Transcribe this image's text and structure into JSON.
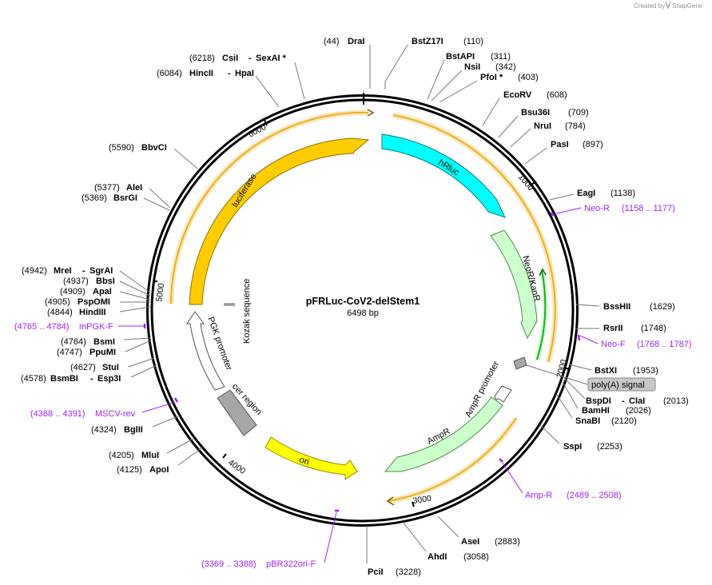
{
  "header": {
    "created_by": "Created by",
    "brand": "SnapGene"
  },
  "plasmid": {
    "name": "pFRLuc-CoV2-delStem1",
    "length_label": "6498 bp",
    "length": 6498
  },
  "ticks": [
    {
      "bp": 1000,
      "label": "1000"
    },
    {
      "bp": 2000,
      "label": "2000"
    },
    {
      "bp": 3000,
      "label": "3000"
    },
    {
      "bp": 4000,
      "label": "4000"
    },
    {
      "bp": 5000,
      "label": "5000"
    },
    {
      "bp": 6000,
      "label": "6000"
    }
  ],
  "sites": [
    {
      "bp": 44,
      "pos": "(44)",
      "names": [
        "DraI"
      ],
      "side": "L"
    },
    {
      "bp": 110,
      "pos": "(110)",
      "names": [
        "BstZ17I"
      ],
      "side": "R"
    },
    {
      "bp": 311,
      "pos": "(311)",
      "names": [
        "BstAPI"
      ],
      "side": "R"
    },
    {
      "bp": 342,
      "pos": "(342)",
      "names": [
        "NsiI"
      ],
      "side": "R"
    },
    {
      "bp": 403,
      "pos": "(403)",
      "names": [
        "PfoI *"
      ],
      "side": "R"
    },
    {
      "bp": 608,
      "pos": "(608)",
      "names": [
        "EcoRV"
      ],
      "side": "R"
    },
    {
      "bp": 709,
      "pos": "(709)",
      "names": [
        "Bsu36I"
      ],
      "side": "R"
    },
    {
      "bp": 784,
      "pos": "(784)",
      "names": [
        "NruI"
      ],
      "side": "R"
    },
    {
      "bp": 897,
      "pos": "(897)",
      "names": [
        "PasI"
      ],
      "side": "R"
    },
    {
      "bp": 1138,
      "pos": "(1138)",
      "names": [
        "EagI"
      ],
      "side": "R"
    },
    {
      "bp": 1629,
      "pos": "(1629)",
      "names": [
        "BssHII"
      ],
      "side": "R"
    },
    {
      "bp": 1748,
      "pos": "(1748)",
      "names": [
        "RsrII"
      ],
      "side": "R"
    },
    {
      "bp": 1953,
      "pos": "(1953)",
      "names": [
        "BstXI"
      ],
      "side": "R"
    },
    {
      "bp": 2013,
      "pos": "(2013)",
      "names": [
        "BspDI",
        "ClaI"
      ],
      "side": "R"
    },
    {
      "bp": 2026,
      "pos": "(2026)",
      "names": [
        "BamHI"
      ],
      "side": "R"
    },
    {
      "bp": 2120,
      "pos": "(2120)",
      "names": [
        "SnaBI"
      ],
      "side": "R"
    },
    {
      "bp": 2253,
      "pos": "(2253)",
      "names": [
        "SspI"
      ],
      "side": "R"
    },
    {
      "bp": 2883,
      "pos": "(2883)",
      "names": [
        "AseI"
      ],
      "side": "R"
    },
    {
      "bp": 3058,
      "pos": "(3058)",
      "names": [
        "AhdI"
      ],
      "side": "R"
    },
    {
      "bp": 3228,
      "pos": "(3228)",
      "names": [
        "PciI"
      ],
      "side": "R"
    },
    {
      "bp": 4125,
      "pos": "(4125)",
      "names": [
        "ApoI"
      ],
      "side": "L"
    },
    {
      "bp": 4205,
      "pos": "(4205)",
      "names": [
        "MluI"
      ],
      "side": "L"
    },
    {
      "bp": 4324,
      "pos": "(4324)",
      "names": [
        "BglII"
      ],
      "side": "L"
    },
    {
      "bp": 4578,
      "pos": "(4578)",
      "names": [
        "BsmBI",
        "Esp3I"
      ],
      "side": "L"
    },
    {
      "bp": 4627,
      "pos": "(4627)",
      "names": [
        "StuI"
      ],
      "side": "L"
    },
    {
      "bp": 4747,
      "pos": "(4747)",
      "names": [
        "PpuMI"
      ],
      "side": "L"
    },
    {
      "bp": 4764,
      "pos": "(4764)",
      "names": [
        "BsmI"
      ],
      "side": "L"
    },
    {
      "bp": 4844,
      "pos": "(4844)",
      "names": [
        "HindIII"
      ],
      "side": "L"
    },
    {
      "bp": 4905,
      "pos": "(4905)",
      "names": [
        "PspOMI"
      ],
      "side": "L"
    },
    {
      "bp": 4909,
      "pos": "(4909)",
      "names": [
        "ApaI"
      ],
      "side": "L"
    },
    {
      "bp": 4937,
      "pos": "(4937)",
      "names": [
        "BbsI"
      ],
      "side": "L"
    },
    {
      "bp": 4942,
      "pos": "(4942)",
      "names": [
        "MreI",
        "SgrAI"
      ],
      "side": "L"
    },
    {
      "bp": 5369,
      "pos": "(5369)",
      "names": [
        "BsrGI"
      ],
      "side": "L"
    },
    {
      "bp": 5377,
      "pos": "(5377)",
      "names": [
        "AleI"
      ],
      "side": "L"
    },
    {
      "bp": 5590,
      "pos": "(5590)",
      "names": [
        "BbvCI"
      ],
      "side": "L"
    },
    {
      "bp": 6084,
      "pos": "(6084)",
      "names": [
        "HincII",
        "HpaI"
      ],
      "side": "L"
    },
    {
      "bp": 6218,
      "pos": "(6218)",
      "names": [
        "CsiI",
        "SexAI *"
      ],
      "side": "L"
    }
  ],
  "primers": [
    {
      "name": "Neo-R",
      "range": "(1158 .. 1177)",
      "side": "R"
    },
    {
      "name": "Neo-F",
      "range": "(1768 .. 1787)",
      "side": "R"
    },
    {
      "name": "Amp-R",
      "range": "(2489 .. 2508)",
      "side": "R"
    },
    {
      "name": "pBR322ori-F",
      "range": "(3369 .. 3388)",
      "side": "L"
    },
    {
      "name": "MSCV-rev",
      "range": "(4368 .. 4391)",
      "side": "L"
    },
    {
      "name": "mPGK-F",
      "range": "(4765 .. 4784)",
      "side": "L"
    }
  ],
  "features": [
    {
      "name": "hRluc",
      "color": "#00ffff"
    },
    {
      "name": "NeoR/KanR",
      "color": "#ccffcc"
    },
    {
      "name": "poly(A) signal",
      "color": "#a6a6a6"
    },
    {
      "name": "AmpR promoter",
      "color": "#ffffff"
    },
    {
      "name": "AmpR",
      "color": "#ccffcc"
    },
    {
      "name": "ori",
      "color": "#ffff00"
    },
    {
      "name": "cer region",
      "color": "#a6a6a6"
    },
    {
      "name": "PGK promoter",
      "color": "#ffffff"
    },
    {
      "name": "Kozak sequence",
      "color": "#a6a6a6"
    },
    {
      "name": "luciferase",
      "color": "#ffcc00"
    }
  ],
  "colors": {
    "primer": "#a020f0",
    "orf_line": "#e8b020",
    "orf_glow": "#fce7bd",
    "green_orf": "#22aa22",
    "brand": "#8a96a3"
  }
}
